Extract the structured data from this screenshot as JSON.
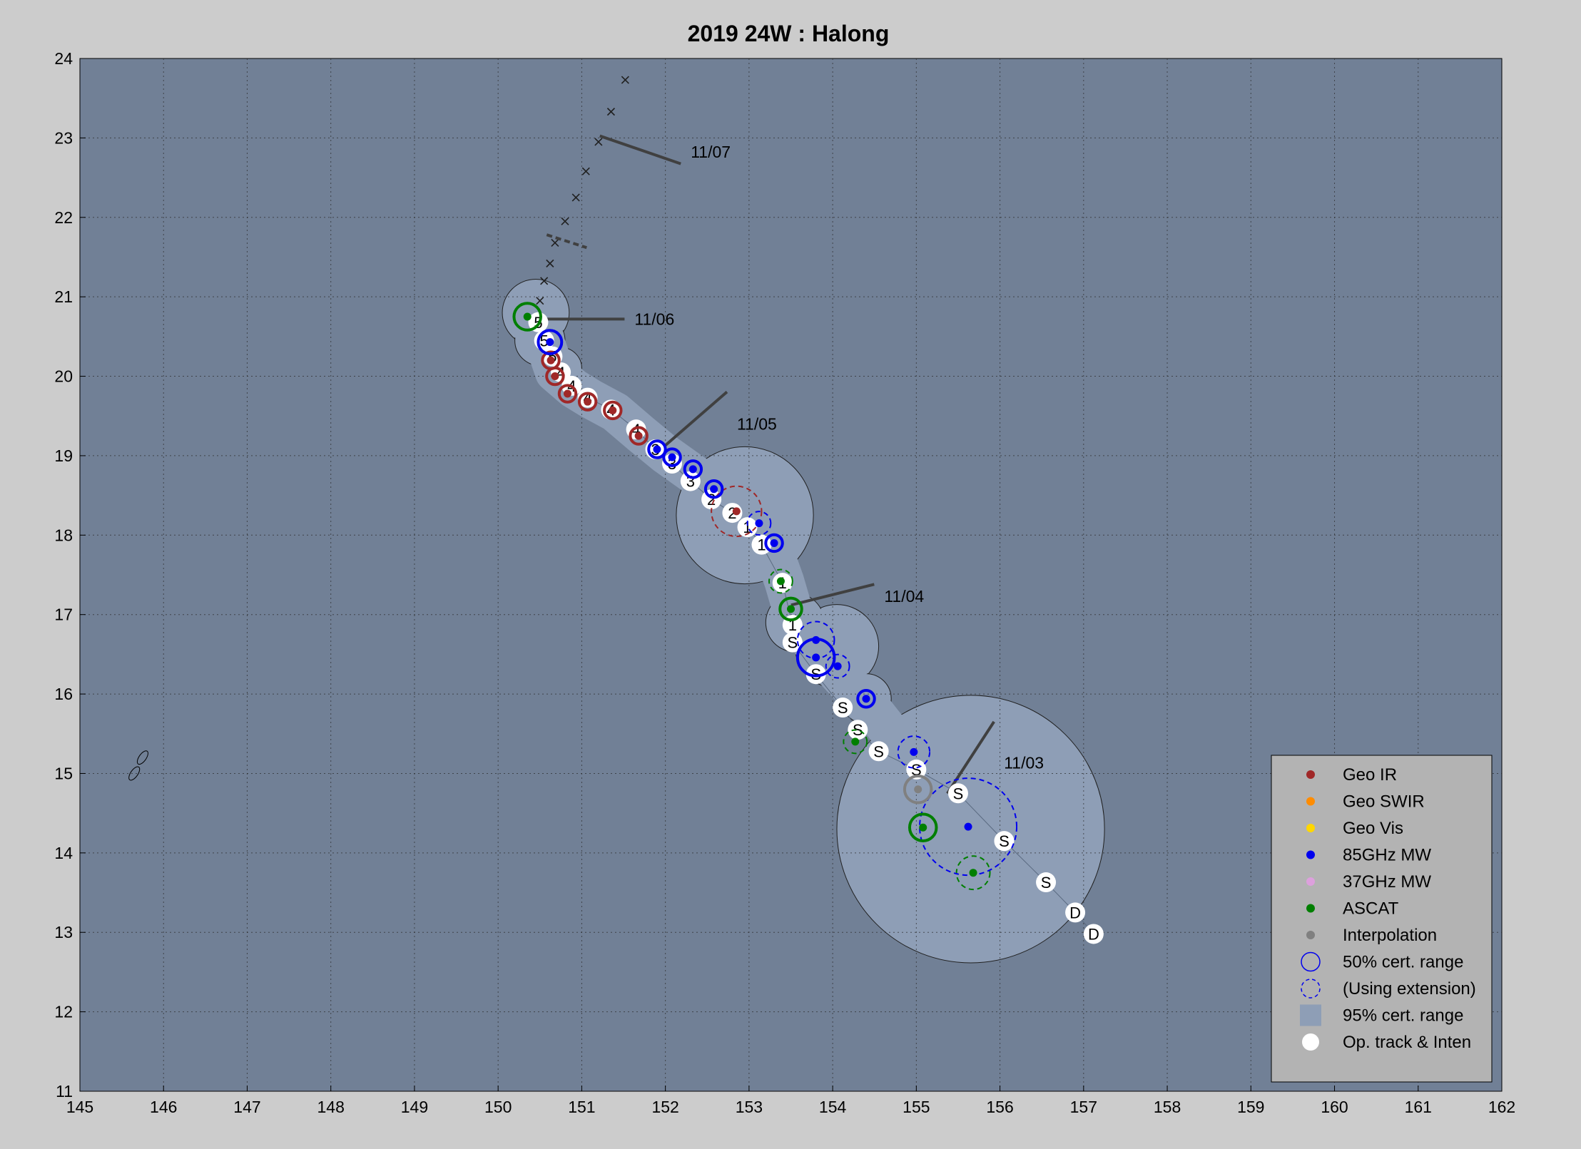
{
  "chart_data": {
    "type": "scatter",
    "title": "2019  24W :  Halong",
    "xlabel": "",
    "ylabel": "",
    "xlim": [
      145,
      162
    ],
    "ylim": [
      11,
      24
    ],
    "grid": true,
    "xticks": [
      145,
      146,
      147,
      148,
      149,
      150,
      151,
      152,
      153,
      154,
      155,
      156,
      157,
      158,
      159,
      160,
      161,
      162
    ],
    "yticks": [
      11,
      12,
      13,
      14,
      15,
      16,
      17,
      18,
      19,
      20,
      21,
      22,
      23,
      24
    ],
    "colors": {
      "background": "#cccccc",
      "plot_bg": "#718096",
      "certainty95": "#8e9eb6",
      "geo_ir": "#a02828",
      "geo_swir": "#ff8c00",
      "geo_vis": "#ffd700",
      "mw85": "#0000ee",
      "mw37": "#dda0dd",
      "ascat": "#007f00",
      "interp": "#808080",
      "track_line": "#404040"
    },
    "legend": {
      "placement": "bottom-right",
      "entries": [
        {
          "label": "Geo IR",
          "symbol": "dot",
          "color": "#a02828"
        },
        {
          "label": "Geo SWIR",
          "symbol": "dot",
          "color": "#ff8c00"
        },
        {
          "label": "Geo Vis",
          "symbol": "dot",
          "color": "#ffd700"
        },
        {
          "label": "85GHz MW",
          "symbol": "dot",
          "color": "#0000ee"
        },
        {
          "label": "37GHz MW",
          "symbol": "dot",
          "color": "#dda0dd"
        },
        {
          "label": "ASCAT",
          "symbol": "dot",
          "color": "#007f00"
        },
        {
          "label": "Interpolation",
          "symbol": "dot",
          "color": "#808080"
        },
        {
          "label": "50% cert. range",
          "symbol": "circle",
          "color": "#0000ee"
        },
        {
          "label": "(Using extension)",
          "symbol": "dashed-circle",
          "color": "#0000ee"
        },
        {
          "label": "95% cert. range",
          "symbol": "square",
          "color": "#8e9eb6"
        },
        {
          "label": "Op. track & Inten",
          "symbol": "white-dot",
          "color": "#ffffff"
        }
      ]
    },
    "date_markers": [
      {
        "label": "11/03",
        "x": 155.65,
        "y": 15.2,
        "angle": -57
      },
      {
        "label": "11/04",
        "x": 154.0,
        "y": 17.25,
        "angle": -14
      },
      {
        "label": "11/05",
        "x": 152.35,
        "y": 19.45,
        "angle": -41
      },
      {
        "label": "11/06",
        "x": 151.0,
        "y": 20.72,
        "angle": 0
      },
      {
        "label": "11/07",
        "x": 151.7,
        "y": 22.85,
        "angle": 19
      }
    ],
    "forecast_track": [
      {
        "x": 150.5,
        "y": 20.95
      },
      {
        "x": 150.55,
        "y": 21.2
      },
      {
        "x": 150.62,
        "y": 21.42
      },
      {
        "x": 150.68,
        "y": 21.68
      },
      {
        "x": 150.8,
        "y": 21.95
      },
      {
        "x": 150.93,
        "y": 22.25
      },
      {
        "x": 151.05,
        "y": 22.58
      },
      {
        "x": 151.2,
        "y": 22.95
      },
      {
        "x": 151.35,
        "y": 23.33
      },
      {
        "x": 151.52,
        "y": 23.73
      }
    ],
    "forecast_dashed_marker": {
      "x": 150.82,
      "y": 21.7
    },
    "op_track": [
      {
        "x": 157.12,
        "y": 12.98,
        "label": "D"
      },
      {
        "x": 156.9,
        "y": 13.25,
        "label": "D"
      },
      {
        "x": 156.55,
        "y": 13.63,
        "label": "S"
      },
      {
        "x": 156.05,
        "y": 14.15,
        "label": "S"
      },
      {
        "x": 155.5,
        "y": 14.75,
        "label": "S"
      },
      {
        "x": 155.0,
        "y": 15.05,
        "label": "S"
      },
      {
        "x": 154.55,
        "y": 15.28,
        "label": "S"
      },
      {
        "x": 154.3,
        "y": 15.55,
        "label": "S"
      },
      {
        "x": 154.12,
        "y": 15.83,
        "label": "S"
      },
      {
        "x": 153.8,
        "y": 16.25,
        "label": "S"
      },
      {
        "x": 153.52,
        "y": 16.65,
        "label": "S"
      },
      {
        "x": 153.52,
        "y": 16.87,
        "label": "1"
      },
      {
        "x": 153.4,
        "y": 17.4,
        "label": "1"
      },
      {
        "x": 153.15,
        "y": 17.88,
        "label": "1"
      },
      {
        "x": 152.98,
        "y": 18.1,
        "label": "1"
      },
      {
        "x": 152.8,
        "y": 18.28,
        "label": "2"
      },
      {
        "x": 152.55,
        "y": 18.45,
        "label": "2"
      },
      {
        "x": 152.3,
        "y": 18.68,
        "label": "3"
      },
      {
        "x": 152.08,
        "y": 18.9,
        "label": "3"
      },
      {
        "x": 151.88,
        "y": 19.08,
        "label": "3"
      },
      {
        "x": 151.65,
        "y": 19.33,
        "label": "4"
      },
      {
        "x": 151.35,
        "y": 19.58,
        "label": "4"
      },
      {
        "x": 151.07,
        "y": 19.73,
        "label": "4"
      },
      {
        "x": 150.88,
        "y": 19.88,
        "label": "4"
      },
      {
        "x": 150.75,
        "y": 20.05,
        "label": "4"
      },
      {
        "x": 150.65,
        "y": 20.25,
        "label": "5"
      },
      {
        "x": 150.55,
        "y": 20.45,
        "label": "5"
      },
      {
        "x": 150.48,
        "y": 20.68,
        "label": "5"
      }
    ],
    "fixes": [
      {
        "type": "ascat",
        "x": 155.68,
        "y": 13.75,
        "r": 0.2,
        "dashed": true
      },
      {
        "type": "mw85",
        "x": 155.62,
        "y": 14.33,
        "r": 0.58,
        "dashed": true
      },
      {
        "type": "ascat",
        "x": 155.08,
        "y": 14.32,
        "r": 0.16,
        "dashed": false
      },
      {
        "type": "interp",
        "x": 155.02,
        "y": 14.8,
        "r": 0.16,
        "dashed": false
      },
      {
        "type": "mw85",
        "x": 154.97,
        "y": 15.27,
        "r": 0.19,
        "dashed": true
      },
      {
        "type": "ascat",
        "x": 154.27,
        "y": 15.4,
        "r": 0.14,
        "dashed": true
      },
      {
        "type": "mw85",
        "x": 154.4,
        "y": 15.94,
        "r": 0.1,
        "dashed": false
      },
      {
        "type": "mw85",
        "x": 154.06,
        "y": 16.35,
        "r": 0.14,
        "dashed": true
      },
      {
        "type": "mw85",
        "x": 153.8,
        "y": 16.46,
        "r": 0.22,
        "dashed": false
      },
      {
        "type": "mw85",
        "x": 153.8,
        "y": 16.68,
        "r": 0.22,
        "dashed": true
      },
      {
        "type": "ascat",
        "x": 153.5,
        "y": 17.07,
        "r": 0.13,
        "dashed": false
      },
      {
        "type": "ascat",
        "x": 153.38,
        "y": 17.42,
        "r": 0.14,
        "dashed": true
      },
      {
        "type": "mw85",
        "x": 153.3,
        "y": 17.9,
        "r": 0.1,
        "dashed": false
      },
      {
        "type": "mw85",
        "x": 153.12,
        "y": 18.15,
        "r": 0.14,
        "dashed": true
      },
      {
        "type": "geo_ir",
        "x": 152.85,
        "y": 18.3,
        "r": 0.3,
        "dashed": true
      },
      {
        "type": "mw85",
        "x": 152.58,
        "y": 18.58,
        "r": 0.1,
        "dashed": false
      },
      {
        "type": "mw85",
        "x": 152.33,
        "y": 18.83,
        "r": 0.1,
        "dashed": false
      },
      {
        "type": "mw85",
        "x": 152.08,
        "y": 18.98,
        "r": 0.1,
        "dashed": false
      },
      {
        "type": "mw85",
        "x": 151.9,
        "y": 19.08,
        "r": 0.1,
        "dashed": false
      },
      {
        "type": "geo_ir",
        "x": 151.68,
        "y": 19.25,
        "r": 0.1,
        "dashed": false
      },
      {
        "type": "geo_ir",
        "x": 151.37,
        "y": 19.57,
        "r": 0.1,
        "dashed": false
      },
      {
        "type": "geo_ir",
        "x": 151.07,
        "y": 19.68,
        "r": 0.1,
        "dashed": false
      },
      {
        "type": "geo_ir",
        "x": 150.83,
        "y": 19.78,
        "r": 0.1,
        "dashed": false
      },
      {
        "type": "geo_ir",
        "x": 150.68,
        "y": 20.0,
        "r": 0.1,
        "dashed": false
      },
      {
        "type": "geo_ir",
        "x": 150.63,
        "y": 20.2,
        "r": 0.1,
        "dashed": false
      },
      {
        "type": "mw85",
        "x": 150.62,
        "y": 20.43,
        "r": 0.14,
        "dashed": false
      },
      {
        "type": "ascat",
        "x": 150.35,
        "y": 20.75,
        "r": 0.16,
        "dashed": false
      }
    ],
    "certainty95_circles": [
      {
        "x": 155.65,
        "y": 14.3,
        "r": 1.6
      },
      {
        "x": 152.95,
        "y": 18.25,
        "r": 0.82
      },
      {
        "x": 154.05,
        "y": 16.6,
        "r": 0.5
      },
      {
        "x": 153.55,
        "y": 16.9,
        "r": 0.35
      },
      {
        "x": 154.4,
        "y": 15.94,
        "r": 0.3
      },
      {
        "x": 150.45,
        "y": 20.8,
        "r": 0.4
      },
      {
        "x": 150.5,
        "y": 20.45,
        "r": 0.3
      },
      {
        "x": 150.75,
        "y": 20.1,
        "r": 0.25
      }
    ],
    "certainty95_path": [
      {
        "x": 150.45,
        "y": 20.8
      },
      {
        "x": 150.55,
        "y": 20.45
      },
      {
        "x": 150.68,
        "y": 20.05
      },
      {
        "x": 150.9,
        "y": 19.85
      },
      {
        "x": 151.1,
        "y": 19.72
      },
      {
        "x": 151.4,
        "y": 19.55
      },
      {
        "x": 151.7,
        "y": 19.28
      },
      {
        "x": 152.0,
        "y": 19.02
      },
      {
        "x": 152.4,
        "y": 18.72
      },
      {
        "x": 152.9,
        "y": 18.3
      },
      {
        "x": 153.25,
        "y": 17.92
      },
      {
        "x": 153.42,
        "y": 17.42
      },
      {
        "x": 153.55,
        "y": 16.95
      },
      {
        "x": 153.85,
        "y": 16.5
      },
      {
        "x": 154.2,
        "y": 16.1
      },
      {
        "x": 154.4,
        "y": 15.9
      },
      {
        "x": 154.7,
        "y": 15.5
      },
      {
        "x": 155.15,
        "y": 15.0
      },
      {
        "x": 155.65,
        "y": 14.3
      }
    ],
    "islands": [
      {
        "x": 145.65,
        "y": 15.0
      },
      {
        "x": 145.75,
        "y": 15.2
      }
    ]
  }
}
